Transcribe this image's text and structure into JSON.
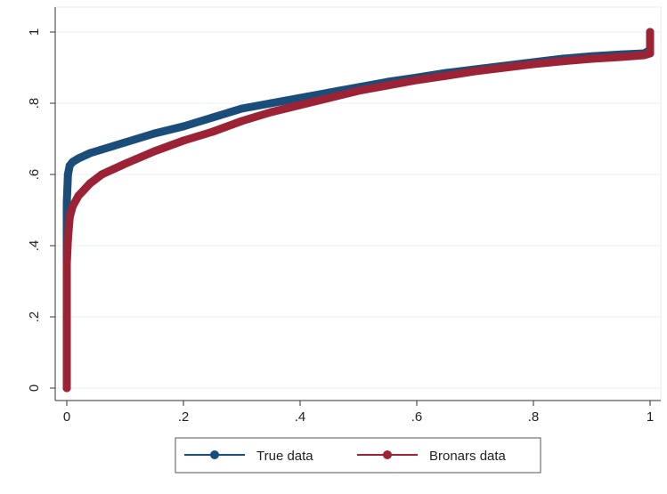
{
  "chart_data": {
    "type": "line",
    "title": "",
    "xlabel": "",
    "ylabel": "",
    "xlim": [
      0,
      1
    ],
    "ylim": [
      0,
      1
    ],
    "x_ticks": [
      0,
      0.2,
      0.4,
      0.6,
      0.8,
      1
    ],
    "x_tick_labels": [
      "0",
      ".2",
      ".4",
      ".6",
      ".8",
      "1"
    ],
    "y_ticks": [
      0,
      0.2,
      0.4,
      0.6,
      0.8,
      1
    ],
    "y_tick_labels": [
      "0",
      ".2",
      ".4",
      ".6",
      ".8",
      "1"
    ],
    "grid": "horizontal",
    "legend_position": "bottom",
    "series": [
      {
        "name": "True data",
        "color": "#1b4d7a",
        "points": [
          [
            0,
            0
          ],
          [
            0,
            0.2
          ],
          [
            0,
            0.4
          ],
          [
            0,
            0.52
          ],
          [
            0.002,
            0.6
          ],
          [
            0.005,
            0.625
          ],
          [
            0.01,
            0.635
          ],
          [
            0.02,
            0.645
          ],
          [
            0.04,
            0.66
          ],
          [
            0.06,
            0.67
          ],
          [
            0.08,
            0.68
          ],
          [
            0.1,
            0.69
          ],
          [
            0.15,
            0.715
          ],
          [
            0.2,
            0.735
          ],
          [
            0.25,
            0.76
          ],
          [
            0.3,
            0.785
          ],
          [
            0.35,
            0.8
          ],
          [
            0.4,
            0.815
          ],
          [
            0.45,
            0.83
          ],
          [
            0.5,
            0.845
          ],
          [
            0.55,
            0.86
          ],
          [
            0.6,
            0.872
          ],
          [
            0.65,
            0.885
          ],
          [
            0.7,
            0.895
          ],
          [
            0.75,
            0.905
          ],
          [
            0.8,
            0.915
          ],
          [
            0.85,
            0.925
          ],
          [
            0.9,
            0.932
          ],
          [
            0.95,
            0.937
          ],
          [
            0.99,
            0.94
          ],
          [
            1,
            0.95
          ],
          [
            1,
            1
          ]
        ]
      },
      {
        "name": "Bronars data",
        "color": "#9b2335",
        "points": [
          [
            0,
            0
          ],
          [
            0,
            0.2
          ],
          [
            0,
            0.35
          ],
          [
            0.002,
            0.42
          ],
          [
            0.005,
            0.48
          ],
          [
            0.01,
            0.51
          ],
          [
            0.02,
            0.54
          ],
          [
            0.04,
            0.575
          ],
          [
            0.06,
            0.6
          ],
          [
            0.08,
            0.615
          ],
          [
            0.1,
            0.63
          ],
          [
            0.15,
            0.665
          ],
          [
            0.2,
            0.695
          ],
          [
            0.25,
            0.72
          ],
          [
            0.3,
            0.75
          ],
          [
            0.35,
            0.775
          ],
          [
            0.4,
            0.795
          ],
          [
            0.45,
            0.815
          ],
          [
            0.5,
            0.835
          ],
          [
            0.55,
            0.85
          ],
          [
            0.6,
            0.865
          ],
          [
            0.65,
            0.877
          ],
          [
            0.7,
            0.89
          ],
          [
            0.75,
            0.9
          ],
          [
            0.8,
            0.91
          ],
          [
            0.85,
            0.918
          ],
          [
            0.9,
            0.925
          ],
          [
            0.95,
            0.93
          ],
          [
            0.99,
            0.935
          ],
          [
            1,
            0.94
          ],
          [
            1,
            1
          ]
        ]
      }
    ]
  }
}
